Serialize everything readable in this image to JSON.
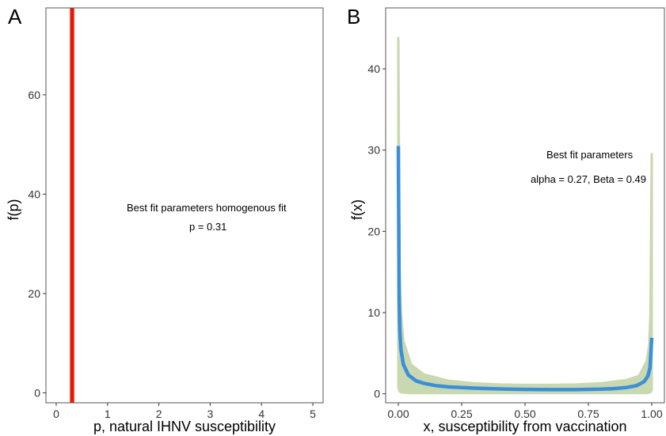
{
  "chart_data": [
    {
      "panel": "A",
      "type": "line",
      "xlabel": "p, natural IHNV susceptibility",
      "ylabel": "f(p)",
      "xlim": [
        -0.2,
        5.2
      ],
      "ylim": [
        -2,
        77.5
      ],
      "x_ticks": [
        0,
        1,
        2,
        3,
        4,
        5
      ],
      "y_ticks": [
        0,
        20,
        40,
        60
      ],
      "grid": false,
      "annotations": [
        "Best fit parameters homogenous fit",
        "p = 0.31"
      ],
      "series": [
        {
          "role": "uncertainty-band",
          "color": "#f4c7a8",
          "band_x": [
            0.26,
            0.36
          ],
          "y_range": [
            -2,
            77.5
          ]
        },
        {
          "role": "best-fit-line",
          "color": "#e8170c",
          "x": [
            0.31,
            0.31
          ],
          "y": [
            -2,
            77.5
          ]
        }
      ]
    },
    {
      "panel": "B",
      "type": "line",
      "xlabel": "x, susceptibility from vaccination",
      "ylabel": "f(x)",
      "xlim": [
        -0.05,
        1.05
      ],
      "ylim": [
        -1.1,
        47.5
      ],
      "x_ticks": [
        "0.00",
        "0.25",
        "0.50",
        "0.75",
        "1.00"
      ],
      "y_ticks": [
        0,
        10,
        20,
        30,
        40
      ],
      "grid": false,
      "annotations": [
        "Best fit parameters",
        "alpha = 0.27, Beta = 0.49"
      ],
      "series": [
        {
          "role": "uncertainty-band",
          "color": "#c8d8b0",
          "x": [
            0.0,
            0.005,
            0.01,
            0.02,
            0.05,
            0.1,
            0.2,
            0.3,
            0.4,
            0.5,
            0.6,
            0.7,
            0.8,
            0.9,
            0.95,
            0.98,
            0.99,
            0.995,
            1.0
          ],
          "upper": [
            43.8,
            15.0,
            10.0,
            6.5,
            3.6,
            2.4,
            1.6,
            1.3,
            1.15,
            1.1,
            1.1,
            1.15,
            1.3,
            1.7,
            2.2,
            4.0,
            6.0,
            10.0,
            29.5
          ],
          "lower": [
            0.8,
            0.3,
            0.2,
            0.15,
            0.1,
            0.1,
            0.1,
            0.1,
            0.1,
            0.1,
            0.1,
            0.1,
            0.1,
            0.1,
            0.1,
            0.1,
            0.15,
            0.2,
            0.5
          ]
        },
        {
          "role": "best-fit-line",
          "name": "alpha = 0.27, Beta = 0.49",
          "color": "#3b8fd8",
          "x": [
            0.0,
            0.003,
            0.006,
            0.01,
            0.02,
            0.04,
            0.07,
            0.1,
            0.15,
            0.2,
            0.3,
            0.4,
            0.5,
            0.6,
            0.7,
            0.8,
            0.85,
            0.9,
            0.94,
            0.97,
            0.985,
            0.993,
            1.0
          ],
          "values": [
            30.5,
            12.0,
            7.8,
            5.5,
            3.6,
            2.3,
            1.6,
            1.3,
            1.0,
            0.85,
            0.7,
            0.6,
            0.55,
            0.52,
            0.52,
            0.58,
            0.64,
            0.78,
            1.0,
            1.5,
            2.2,
            3.2,
            6.9
          ]
        }
      ]
    }
  ]
}
